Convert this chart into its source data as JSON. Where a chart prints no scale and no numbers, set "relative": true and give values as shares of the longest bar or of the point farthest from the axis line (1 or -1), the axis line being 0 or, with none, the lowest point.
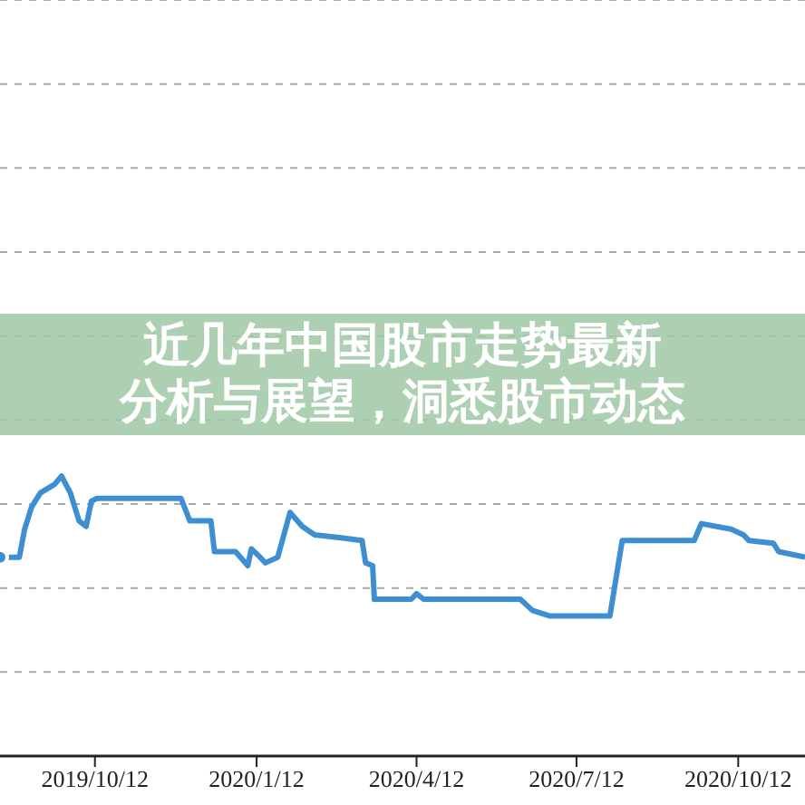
{
  "chart_data": {
    "type": "line",
    "title": "近几年中国股市走势最新分析与展望，洞悉股市动态",
    "relative": true,
    "grid": "y",
    "marker": "none",
    "line_style": "solid",
    "x": [
      "2019-08-19",
      "2019-08-30",
      "2019-09-02",
      "2019-09-06",
      "2019-09-11",
      "2019-09-19",
      "2019-09-23",
      "2019-09-28",
      "2019-10-03",
      "2019-10-07",
      "2019-10-10",
      "2019-10-13",
      "2019-11-30",
      "2019-12-05",
      "2019-12-17",
      "2019-12-19",
      "2019-12-31",
      "2020-01-07",
      "2020-01-09",
      "2020-01-14",
      "2020-01-17",
      "2020-01-24",
      "2020-01-31",
      "2020-02-07",
      "2020-02-14",
      "2020-02-28",
      "2020-03-12",
      "2020-03-14",
      "2020-03-18",
      "2020-03-19",
      "2020-04-09",
      "2020-04-12",
      "2020-04-16",
      "2020-06-10",
      "2020-06-17",
      "2020-06-27",
      "2020-07-31",
      "2020-08-07",
      "2020-09-17",
      "2020-09-21",
      "2020-10-08",
      "2020-10-15",
      "2020-10-18",
      "2020-11-01",
      "2020-11-04",
      "2020-11-19"
    ],
    "series": [
      {
        "color": "#3d8fd1",
        "values": [
          0.71,
          0.71,
          0.81,
          0.89,
          0.94,
          0.97,
          1.0,
          0.94,
          0.84,
          0.82,
          0.91,
          0.92,
          0.92,
          0.84,
          0.84,
          0.73,
          0.73,
          0.68,
          0.74,
          0.71,
          0.69,
          0.71,
          0.87,
          0.82,
          0.79,
          0.78,
          0.77,
          0.69,
          0.68,
          0.56,
          0.56,
          0.58,
          0.56,
          0.56,
          0.52,
          0.5,
          0.5,
          0.77,
          0.77,
          0.83,
          0.81,
          0.79,
          0.77,
          0.76,
          0.73,
          0.71
        ]
      }
    ],
    "xlim": [
      "2019-08-19",
      "2020-11-19"
    ],
    "xticks": [
      {
        "value": "2019-10-12",
        "label": "2019/10/12"
      },
      {
        "value": "2020-01-12",
        "label": "2020/1/12"
      },
      {
        "value": "2020-04-12",
        "label": "2020/4/12"
      },
      {
        "value": "2020-07-12",
        "label": "2020/7/12"
      },
      {
        "value": "2020-10-12",
        "label": "2020/10/12"
      }
    ]
  }
}
